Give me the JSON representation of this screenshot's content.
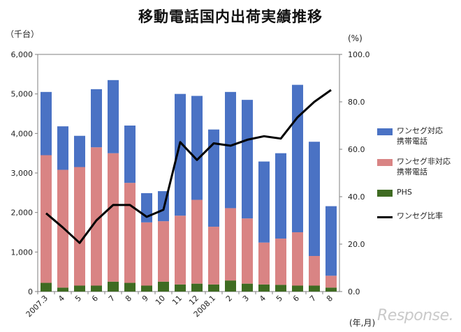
{
  "title": "移動電話国内出荷実績推移",
  "left_unit": "（千台）",
  "right_unit": "(%)",
  "x_unit": "(年,月)",
  "watermark": "Response.",
  "colors": {
    "oneseg": "#4a72c4",
    "non_oneseg": "#d98484",
    "phs": "#3f6b22",
    "ratio": "#000000"
  },
  "chart_data": {
    "type": "bar",
    "stacked": true,
    "title": "移動電話国内出荷実績推移",
    "categories": [
      "2007.3",
      "4",
      "5",
      "6",
      "7",
      "8",
      "9",
      "10",
      "11",
      "12",
      "2008.1",
      "2",
      "3",
      "4",
      "5",
      "6",
      "7",
      "8"
    ],
    "ylim": [
      0,
      6000
    ],
    "yticks": [
      "0",
      "1,000",
      "2,000",
      "3,000",
      "4,000",
      "5,000",
      "6,000"
    ],
    "y2lim": [
      0,
      100
    ],
    "y2ticks": [
      "0.0",
      "20.0",
      "40.0",
      "60.0",
      "80.0",
      "100.0"
    ],
    "series": [
      {
        "name": "PHS",
        "color": "#3f6b22",
        "values": [
          220,
          100,
          150,
          150,
          250,
          220,
          150,
          250,
          180,
          200,
          180,
          280,
          200,
          180,
          170,
          150,
          150,
          100
        ]
      },
      {
        "name": "ワンセグ非対応\n携帯電話",
        "color": "#d98484",
        "values": [
          3230,
          2980,
          3000,
          3500,
          3250,
          2530,
          1600,
          1530,
          1740,
          2120,
          1460,
          1830,
          1650,
          1060,
          1170,
          1350,
          750,
          300
        ]
      },
      {
        "name": "ワンセグ対応\n携帯電話",
        "color": "#4a72c4",
        "values": [
          1600,
          1100,
          790,
          1470,
          1850,
          1450,
          740,
          760,
          3080,
          2630,
          2460,
          2940,
          3000,
          2050,
          2160,
          3730,
          2890,
          1760
        ]
      }
    ],
    "line_series": {
      "name": "ワンセグ比率",
      "axis": "right",
      "color": "#000000",
      "values": [
        33,
        27,
        20.5,
        30,
        36.5,
        36.5,
        31.5,
        34.5,
        63,
        55.5,
        62.5,
        61.5,
        64,
        65.5,
        64.5,
        73.5,
        80,
        85
      ]
    },
    "legend_position": "right",
    "grid": false
  }
}
